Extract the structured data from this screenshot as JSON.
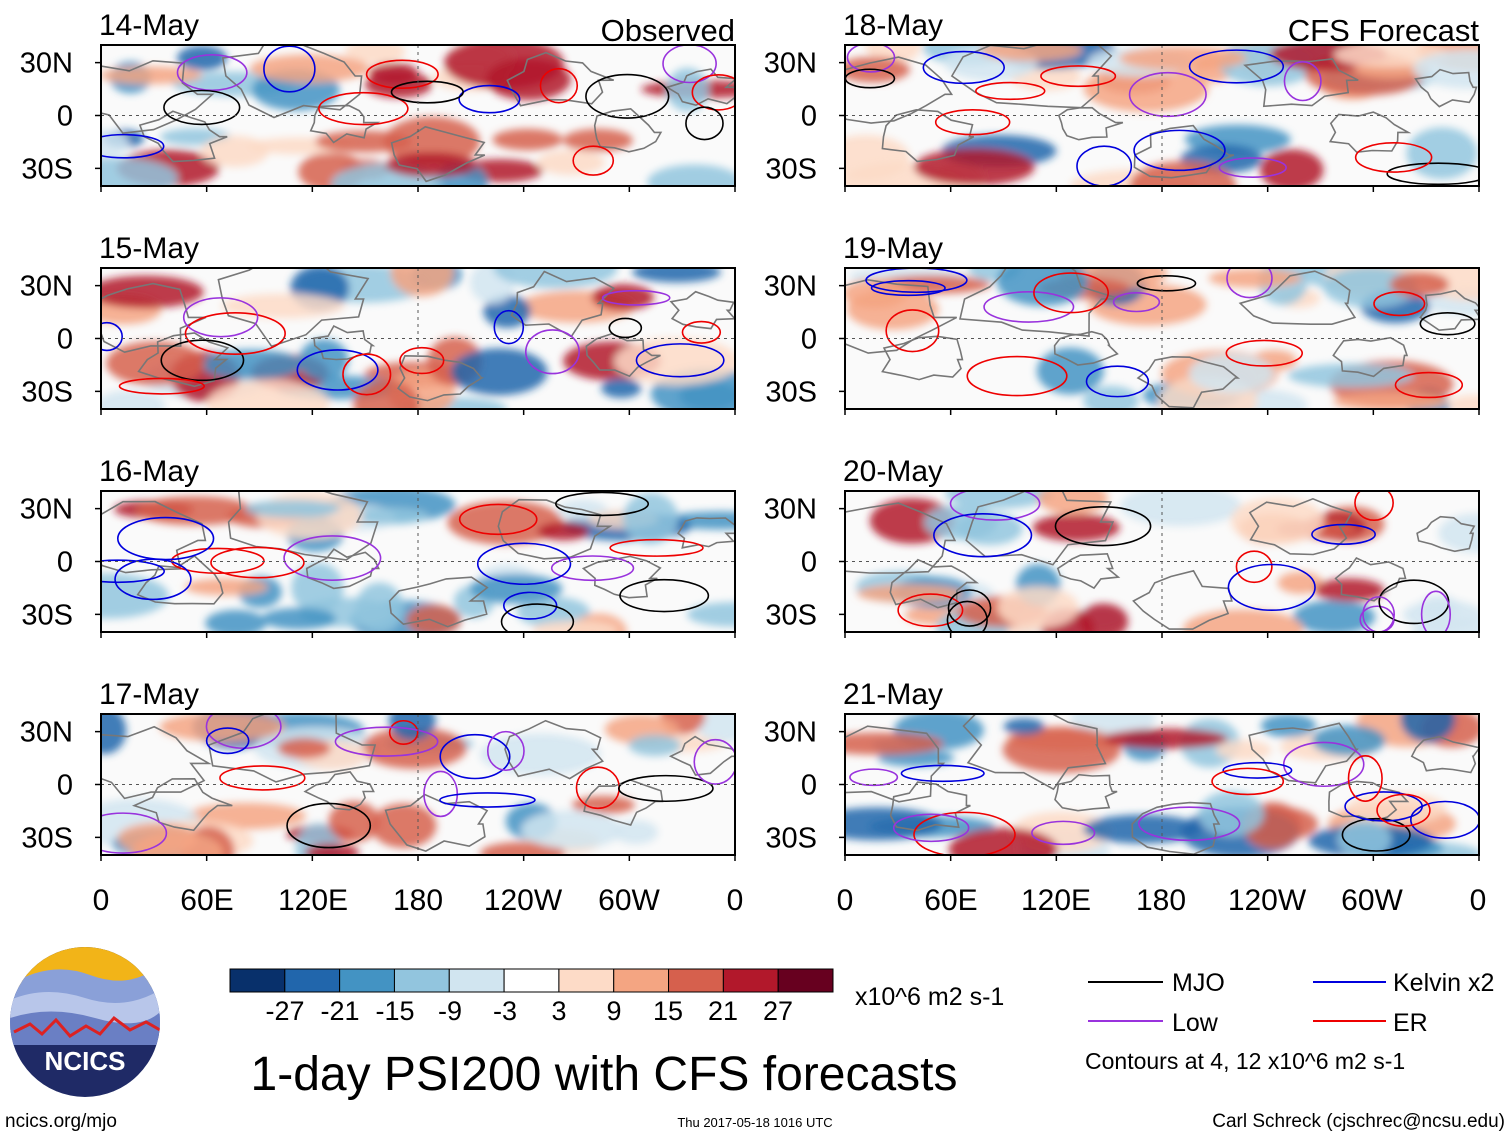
{
  "chart_data": {
    "type": "heatmap",
    "title": "1-day PSI200 with CFS forecasts",
    "columns": [
      {
        "label": "Observed",
        "dates": [
          "14-May",
          "15-May",
          "16-May",
          "17-May"
        ]
      },
      {
        "label": "CFS Forecast",
        "dates": [
          "18-May",
          "19-May",
          "20-May",
          "21-May"
        ]
      }
    ],
    "x_ticks": [
      "0",
      "60E",
      "120E",
      "180",
      "120W",
      "60W",
      "0"
    ],
    "x_range_deg_east": [
      0,
      360
    ],
    "y_ticks": [
      "30N",
      "0",
      "30S"
    ],
    "y_range_lat": [
      -40,
      40
    ],
    "colorbar": {
      "unit": "x10^6 m2 s-1",
      "tick_labels": [
        "-27",
        "-21",
        "-15",
        "-9",
        "-3",
        "3",
        "9",
        "15",
        "21",
        "27"
      ],
      "boundaries": [
        -27,
        -21,
        -15,
        -9,
        -3,
        3,
        9,
        15,
        21,
        27
      ],
      "colors": [
        "#08306b",
        "#2166ac",
        "#4393c3",
        "#92c5de",
        "#d1e5f0",
        "#ffffff",
        "#fddbc7",
        "#f4a582",
        "#d6604d",
        "#b2182b",
        "#67001f"
      ]
    },
    "legend": [
      {
        "label": "MJO",
        "color": "#000000"
      },
      {
        "label": "Kelvin x2",
        "color": "#0000dd"
      },
      {
        "label": "Low",
        "color": "#9933dd"
      },
      {
        "label": "ER",
        "color": "#ee0000"
      }
    ],
    "contour_note": "Contours at 4, 12 x10^6 m2 s-1"
  },
  "footer": {
    "logo_text": "NCICS",
    "left": "ncics.org/mjo",
    "center": "Thu 2017-05-18 1016 UTC",
    "right": "Carl Schreck (cjschrec@ncsu.edu)"
  }
}
